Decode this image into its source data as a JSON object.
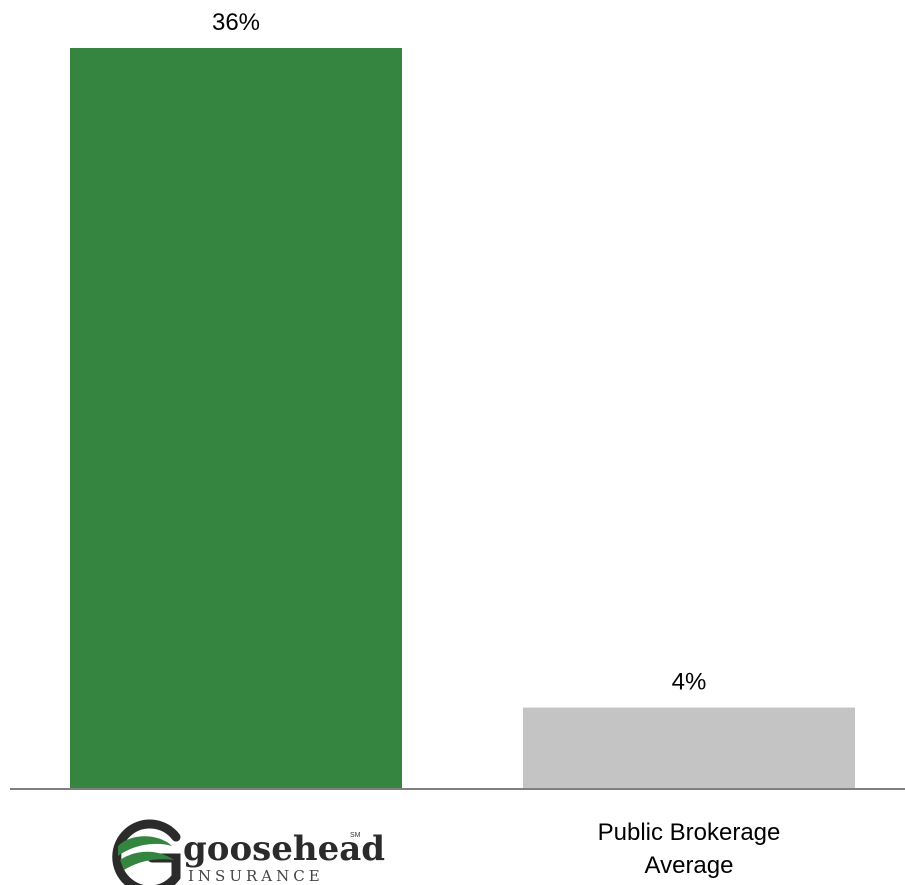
{
  "chart_data": {
    "type": "bar",
    "categories": [
      "goosehead INSURANCE",
      "Public Brokerage Average"
    ],
    "category_display": [
      {
        "kind": "logo",
        "text": "goosehead",
        "subtext": "INSURANCE",
        "mark": "SM"
      },
      {
        "kind": "text",
        "lines": [
          "Public Brokerage",
          "Average"
        ]
      }
    ],
    "values": [
      36,
      4
    ],
    "value_labels": [
      "36%",
      "4%"
    ],
    "ylim": [
      0,
      36
    ],
    "grid": false,
    "legend": "none",
    "colors": [
      "#358540",
      "#c4c4c4"
    ],
    "axis_color": "#7f7f7f",
    "logo_colors": {
      "dark": "#2b2b2b",
      "green": "#358540"
    }
  }
}
